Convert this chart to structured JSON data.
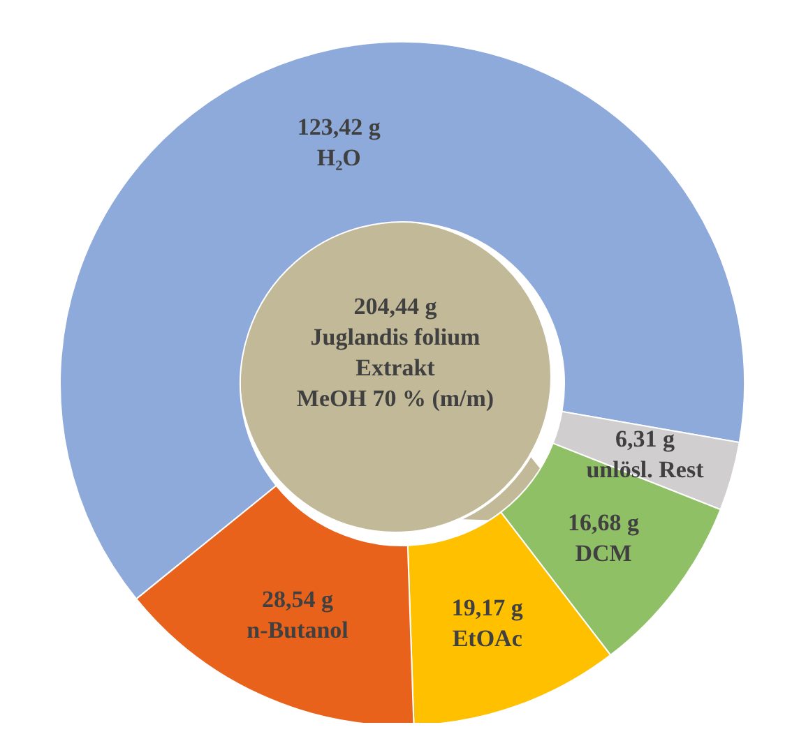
{
  "chart_data": {
    "type": "donut",
    "categories": [
      "H₂O",
      "unlösl. Rest",
      "DCM",
      "EtOAc",
      "n-Butanol"
    ],
    "values": [
      123.42,
      6.31,
      16.68,
      19.17,
      28.54
    ],
    "value_labels": [
      "123,42 g",
      "6,31 g",
      "16,68 g",
      "19,17 g",
      "28,54 g"
    ],
    "colors": [
      "#8eaadb",
      "#d0cece",
      "#8fc066",
      "#ffc000",
      "#e8621c"
    ],
    "annotations": [
      "204,44 g",
      "Juglandis folium",
      "Extrakt",
      "MeOH 70 % (m/m)"
    ]
  }
}
